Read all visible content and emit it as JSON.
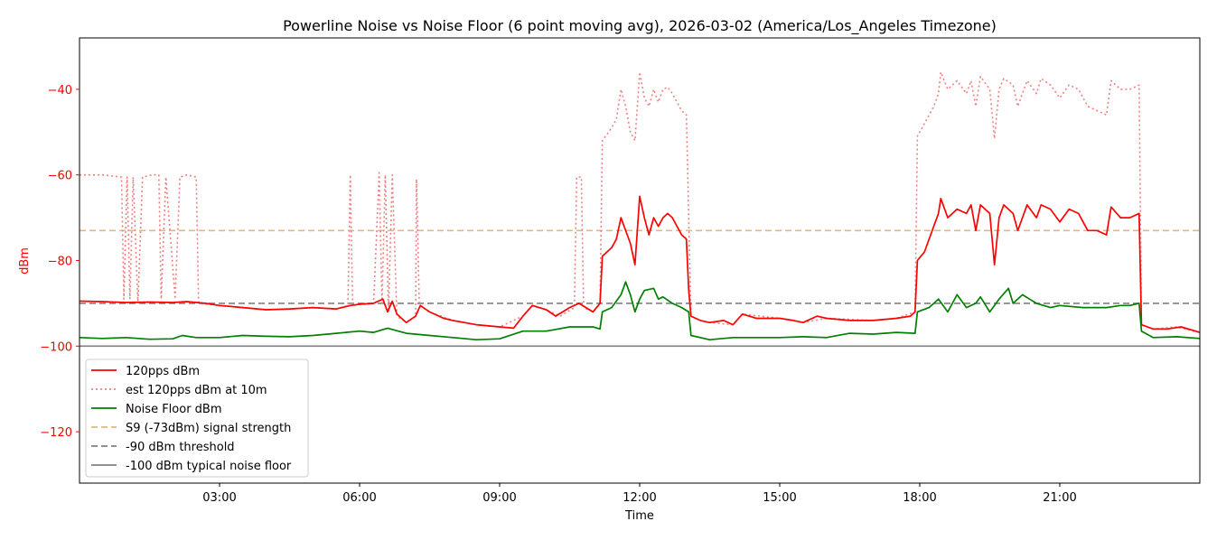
{
  "chart_data": {
    "type": "line",
    "title": "Powerline Noise vs Noise Floor (6 point moving avg), 2026-03-02 (America/Los_Angeles Timezone)",
    "xlabel": "Time",
    "ylabel": "dBm",
    "xlim_hours": [
      0,
      24
    ],
    "ylim": [
      -132,
      -28
    ],
    "x_ticks": [
      {
        "hour": 3,
        "label": "03:00"
      },
      {
        "hour": 6,
        "label": "06:00"
      },
      {
        "hour": 9,
        "label": "09:00"
      },
      {
        "hour": 12,
        "label": "12:00"
      },
      {
        "hour": 15,
        "label": "15:00"
      },
      {
        "hour": 18,
        "label": "18:00"
      },
      {
        "hour": 21,
        "label": "21:00"
      }
    ],
    "y_ticks": [
      {
        "value": -40,
        "label": "−40"
      },
      {
        "value": -60,
        "label": "−60"
      },
      {
        "value": -80,
        "label": "−80"
      },
      {
        "value": -100,
        "label": "−100"
      },
      {
        "value": -120,
        "label": "−120"
      }
    ],
    "grid": false,
    "legend_placement": "lower-left",
    "ylabel_color": "#ff0000",
    "series": [
      {
        "name": "120pps dBm",
        "color": "#ff0000",
        "style": "solid",
        "points": [
          [
            0,
            -89.5
          ],
          [
            0.5,
            -89.6
          ],
          [
            1,
            -89.8
          ],
          [
            1.5,
            -89.7
          ],
          [
            2,
            -89.8
          ],
          [
            2.3,
            -89.6
          ],
          [
            2.7,
            -90
          ],
          [
            3,
            -90.5
          ],
          [
            3.5,
            -91
          ],
          [
            4,
            -91.5
          ],
          [
            4.5,
            -91.3
          ],
          [
            5,
            -91
          ],
          [
            5.5,
            -91.3
          ],
          [
            5.8,
            -90.5
          ],
          [
            6,
            -90.2
          ],
          [
            6.3,
            -90
          ],
          [
            6.5,
            -89
          ],
          [
            6.6,
            -92
          ],
          [
            6.7,
            -89.5
          ],
          [
            6.8,
            -92.5
          ],
          [
            7,
            -94.5
          ],
          [
            7.2,
            -93
          ],
          [
            7.3,
            -90.5
          ],
          [
            7.5,
            -92
          ],
          [
            7.8,
            -93.5
          ],
          [
            8,
            -94
          ],
          [
            8.5,
            -95
          ],
          [
            9,
            -95.5
          ],
          [
            9.3,
            -95.8
          ],
          [
            9.5,
            -93
          ],
          [
            9.7,
            -90.5
          ],
          [
            10,
            -91.5
          ],
          [
            10.2,
            -93
          ],
          [
            10.5,
            -91
          ],
          [
            10.7,
            -90
          ],
          [
            11,
            -92
          ],
          [
            11.15,
            -90
          ],
          [
            11.2,
            -79
          ],
          [
            11.4,
            -77
          ],
          [
            11.5,
            -75
          ],
          [
            11.6,
            -70
          ],
          [
            11.7,
            -73
          ],
          [
            11.8,
            -76
          ],
          [
            11.9,
            -81
          ],
          [
            12,
            -65
          ],
          [
            12.1,
            -70
          ],
          [
            12.2,
            -74
          ],
          [
            12.3,
            -70
          ],
          [
            12.4,
            -72
          ],
          [
            12.5,
            -70
          ],
          [
            12.6,
            -69
          ],
          [
            12.7,
            -70
          ],
          [
            12.8,
            -72
          ],
          [
            12.9,
            -74
          ],
          [
            13,
            -75
          ],
          [
            13.05,
            -87
          ],
          [
            13.1,
            -93
          ],
          [
            13.3,
            -94
          ],
          [
            13.5,
            -94.5
          ],
          [
            13.8,
            -94
          ],
          [
            14,
            -95
          ],
          [
            14.2,
            -92.5
          ],
          [
            14.5,
            -93.5
          ],
          [
            15,
            -93.5
          ],
          [
            15.3,
            -94
          ],
          [
            15.5,
            -94.5
          ],
          [
            15.8,
            -93
          ],
          [
            16,
            -93.5
          ],
          [
            16.5,
            -94
          ],
          [
            17,
            -94
          ],
          [
            17.5,
            -93.5
          ],
          [
            17.8,
            -93
          ],
          [
            17.9,
            -92
          ],
          [
            17.95,
            -80
          ],
          [
            18.1,
            -78
          ],
          [
            18.3,
            -72
          ],
          [
            18.4,
            -69
          ],
          [
            18.45,
            -65.5
          ],
          [
            18.6,
            -70
          ],
          [
            18.8,
            -68
          ],
          [
            19,
            -69
          ],
          [
            19.1,
            -67
          ],
          [
            19.2,
            -73
          ],
          [
            19.3,
            -67
          ],
          [
            19.5,
            -69
          ],
          [
            19.6,
            -81
          ],
          [
            19.7,
            -70
          ],
          [
            19.8,
            -67
          ],
          [
            20,
            -69
          ],
          [
            20.1,
            -73
          ],
          [
            20.3,
            -67
          ],
          [
            20.5,
            -70
          ],
          [
            20.6,
            -67
          ],
          [
            20.8,
            -68
          ],
          [
            21,
            -71
          ],
          [
            21.2,
            -68
          ],
          [
            21.4,
            -69
          ],
          [
            21.5,
            -71
          ],
          [
            21.6,
            -73
          ],
          [
            21.8,
            -73
          ],
          [
            22,
            -74
          ],
          [
            22.1,
            -67.5
          ],
          [
            22.3,
            -70
          ],
          [
            22.5,
            -70
          ],
          [
            22.7,
            -69
          ],
          [
            22.75,
            -95
          ],
          [
            23,
            -96
          ],
          [
            23.3,
            -96
          ],
          [
            23.6,
            -95.5
          ],
          [
            24,
            -96.8
          ]
        ]
      },
      {
        "name": "est 120pps dBm at 10m",
        "color": "#f08080",
        "style": "dotted",
        "points": [
          [
            0,
            -60
          ],
          [
            0.5,
            -60
          ],
          [
            0.9,
            -60.5
          ],
          [
            0.95,
            -89
          ],
          [
            1.02,
            -60.5
          ],
          [
            1.08,
            -89
          ],
          [
            1.15,
            -60.5
          ],
          [
            1.25,
            -90
          ],
          [
            1.35,
            -60.5
          ],
          [
            1.55,
            -60
          ],
          [
            1.7,
            -60
          ],
          [
            1.75,
            -89
          ],
          [
            1.85,
            -60.5
          ],
          [
            2.05,
            -89
          ],
          [
            2.15,
            -60.5
          ],
          [
            2.3,
            -60
          ],
          [
            2.5,
            -60.5
          ],
          [
            2.55,
            -90
          ],
          [
            3,
            -90.5
          ],
          [
            3.5,
            -91
          ],
          [
            4,
            -91.5
          ],
          [
            4.5,
            -91.3
          ],
          [
            5,
            -91
          ],
          [
            5.5,
            -91.3
          ],
          [
            5.75,
            -90.5
          ],
          [
            5.8,
            -60
          ],
          [
            5.85,
            -90.5
          ],
          [
            6.3,
            -90
          ],
          [
            6.42,
            -59.5
          ],
          [
            6.48,
            -90
          ],
          [
            6.55,
            -60
          ],
          [
            6.62,
            -92
          ],
          [
            6.7,
            -60
          ],
          [
            6.8,
            -93
          ],
          [
            7,
            -94.5
          ],
          [
            7.2,
            -93
          ],
          [
            7.22,
            -61
          ],
          [
            7.28,
            -90.5
          ],
          [
            7.5,
            -92
          ],
          [
            8,
            -94
          ],
          [
            8.5,
            -95
          ],
          [
            9,
            -95.5
          ],
          [
            9.5,
            -93
          ],
          [
            9.7,
            -90.5
          ],
          [
            10,
            -91.5
          ],
          [
            10.3,
            -93
          ],
          [
            10.6,
            -91
          ],
          [
            10.65,
            -60.5
          ],
          [
            10.75,
            -60.5
          ],
          [
            10.8,
            -91
          ],
          [
            11,
            -92
          ],
          [
            11.15,
            -90
          ],
          [
            11.2,
            -52
          ],
          [
            11.4,
            -49
          ],
          [
            11.5,
            -47
          ],
          [
            11.6,
            -40
          ],
          [
            11.7,
            -44
          ],
          [
            11.8,
            -50
          ],
          [
            11.9,
            -52
          ],
          [
            12,
            -36
          ],
          [
            12.1,
            -42
          ],
          [
            12.2,
            -44
          ],
          [
            12.3,
            -40
          ],
          [
            12.4,
            -43
          ],
          [
            12.5,
            -40
          ],
          [
            12.6,
            -39.5
          ],
          [
            12.7,
            -41
          ],
          [
            12.8,
            -43
          ],
          [
            12.9,
            -45
          ],
          [
            13,
            -46
          ],
          [
            13.05,
            -70
          ],
          [
            13.1,
            -93
          ],
          [
            13.3,
            -94
          ],
          [
            13.5,
            -94.5
          ],
          [
            14,
            -95
          ],
          [
            14.2,
            -92.5
          ],
          [
            15,
            -93.5
          ],
          [
            15.5,
            -94.5
          ],
          [
            16,
            -93.5
          ],
          [
            17,
            -94
          ],
          [
            17.5,
            -93.5
          ],
          [
            17.9,
            -92
          ],
          [
            17.95,
            -51
          ],
          [
            18.1,
            -48
          ],
          [
            18.3,
            -44
          ],
          [
            18.4,
            -41
          ],
          [
            18.45,
            -36
          ],
          [
            18.6,
            -40
          ],
          [
            18.8,
            -38
          ],
          [
            19,
            -41
          ],
          [
            19.1,
            -38
          ],
          [
            19.2,
            -44
          ],
          [
            19.3,
            -37
          ],
          [
            19.5,
            -40
          ],
          [
            19.6,
            -51.5
          ],
          [
            19.7,
            -40
          ],
          [
            19.8,
            -37.5
          ],
          [
            20,
            -39
          ],
          [
            20.1,
            -44
          ],
          [
            20.3,
            -38
          ],
          [
            20.5,
            -41
          ],
          [
            20.6,
            -37.5
          ],
          [
            20.8,
            -39
          ],
          [
            21,
            -42
          ],
          [
            21.2,
            -39
          ],
          [
            21.4,
            -40
          ],
          [
            21.5,
            -42
          ],
          [
            21.6,
            -44
          ],
          [
            21.8,
            -45
          ],
          [
            22,
            -46
          ],
          [
            22.1,
            -38
          ],
          [
            22.3,
            -40
          ],
          [
            22.5,
            -40
          ],
          [
            22.7,
            -39
          ],
          [
            22.75,
            -95
          ],
          [
            23,
            -96
          ],
          [
            23.5,
            -95.5
          ],
          [
            24,
            -96.8
          ]
        ]
      },
      {
        "name": "Noise Floor dBm",
        "color": "#008000",
        "style": "solid",
        "points": [
          [
            0,
            -98
          ],
          [
            0.5,
            -98.2
          ],
          [
            1,
            -98
          ],
          [
            1.5,
            -98.4
          ],
          [
            2,
            -98.3
          ],
          [
            2.2,
            -97.5
          ],
          [
            2.5,
            -98
          ],
          [
            3,
            -98
          ],
          [
            3.5,
            -97.5
          ],
          [
            4,
            -97.7
          ],
          [
            4.5,
            -97.8
          ],
          [
            5,
            -97.5
          ],
          [
            5.5,
            -97
          ],
          [
            6,
            -96.5
          ],
          [
            6.3,
            -96.8
          ],
          [
            6.6,
            -95.8
          ],
          [
            7,
            -97
          ],
          [
            7.5,
            -97.5
          ],
          [
            8,
            -98
          ],
          [
            8.5,
            -98.5
          ],
          [
            9,
            -98.3
          ],
          [
            9.5,
            -96.5
          ],
          [
            10,
            -96.5
          ],
          [
            10.5,
            -95.5
          ],
          [
            11,
            -95.5
          ],
          [
            11.15,
            -96
          ],
          [
            11.2,
            -92
          ],
          [
            11.4,
            -91
          ],
          [
            11.6,
            -88
          ],
          [
            11.7,
            -85
          ],
          [
            11.8,
            -88
          ],
          [
            11.9,
            -92
          ],
          [
            12,
            -89
          ],
          [
            12.1,
            -87
          ],
          [
            12.3,
            -86.5
          ],
          [
            12.4,
            -89
          ],
          [
            12.5,
            -88.5
          ],
          [
            12.7,
            -90
          ],
          [
            12.9,
            -91
          ],
          [
            13.05,
            -92
          ],
          [
            13.1,
            -97.5
          ],
          [
            13.5,
            -98.5
          ],
          [
            14,
            -98
          ],
          [
            15,
            -98
          ],
          [
            15.5,
            -97.8
          ],
          [
            16,
            -98
          ],
          [
            16.5,
            -97
          ],
          [
            17,
            -97.2
          ],
          [
            17.5,
            -96.8
          ],
          [
            17.9,
            -97
          ],
          [
            17.95,
            -92
          ],
          [
            18.2,
            -91
          ],
          [
            18.4,
            -89
          ],
          [
            18.6,
            -92
          ],
          [
            18.8,
            -88
          ],
          [
            19,
            -91
          ],
          [
            19.2,
            -90
          ],
          [
            19.3,
            -88.5
          ],
          [
            19.5,
            -92
          ],
          [
            19.7,
            -89
          ],
          [
            19.9,
            -86.5
          ],
          [
            20,
            -90
          ],
          [
            20.2,
            -88
          ],
          [
            20.5,
            -90
          ],
          [
            20.8,
            -91
          ],
          [
            21,
            -90.5
          ],
          [
            21.5,
            -91
          ],
          [
            22,
            -91
          ],
          [
            22.3,
            -90.5
          ],
          [
            22.5,
            -90.5
          ],
          [
            22.7,
            -90
          ],
          [
            22.75,
            -96.5
          ],
          [
            23,
            -98
          ],
          [
            23.5,
            -97.8
          ],
          [
            24,
            -98.2
          ]
        ]
      }
    ],
    "reference_lines": [
      {
        "name": "S9 (-73dBm) signal strength",
        "value": -73,
        "color": "#deb887",
        "style": "dashed"
      },
      {
        "name": "-90 dBm threshold",
        "value": -90,
        "color": "#808080",
        "style": "dashed"
      },
      {
        "name": "-100 dBm typical noise floor",
        "value": -100,
        "color": "#808080",
        "style": "solid"
      }
    ]
  }
}
